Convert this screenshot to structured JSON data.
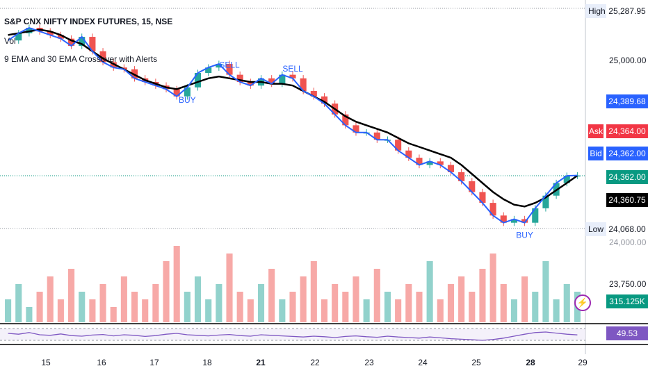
{
  "legend": {
    "title": "S&P CNX NIFTY INDEX FUTURES, 15, NSE",
    "vol_label": "Vol",
    "study_label": "9 EMA and 30 EMA Crossover with Alerts"
  },
  "price_axis": {
    "high_label": "High",
    "high_value": "25,287.95",
    "low_label": "Low",
    "low_value": "24,068.00",
    "ticks": [
      "25,000.00",
      "24,000.00",
      "23,750.00"
    ],
    "ask_label": "Ask",
    "bid_label": "Bid",
    "last_value": "24,389.68",
    "ask_value": "24,364.00",
    "bid_value": "24,362.00",
    "close_value": "24,362.00",
    "ema_value": "24,360.75",
    "volume_value": "315.125K",
    "rsi_value": "49.53"
  },
  "colors": {
    "up": "#26a69a",
    "down": "#ef5350",
    "ema9": "#2962ff",
    "ema30": "#000000",
    "rsi": "#7e57c2",
    "last_tag": "#2962ff",
    "ask_tag": "#f23645",
    "bid_tag": "#2962ff",
    "close_tag": "#089981",
    "ema_tag": "#000000",
    "rsi_tag": "#7e57c2"
  },
  "icons": {
    "alert": "lightning-icon"
  },
  "chart_data": {
    "type": "line",
    "title": "S&P CNX NIFTY INDEX FUTURES, 15, NSE",
    "x_ticks": [
      {
        "label": "15",
        "bold": false
      },
      {
        "label": "16",
        "bold": false
      },
      {
        "label": "17",
        "bold": false
      },
      {
        "label": "18",
        "bold": false
      },
      {
        "label": "21",
        "bold": true
      },
      {
        "label": "22",
        "bold": false
      },
      {
        "label": "23",
        "bold": false
      },
      {
        "label": "24",
        "bold": false
      },
      {
        "label": "25",
        "bold": false
      },
      {
        "label": "28",
        "bold": true
      },
      {
        "label": "29",
        "bold": false
      }
    ],
    "ylim": [
      24000,
      25300
    ],
    "high": 25287.95,
    "low": 24068.0,
    "ema9": [
      25110,
      25150,
      25180,
      25160,
      25140,
      25120,
      25080,
      25130,
      25050,
      24990,
      24960,
      24950,
      24900,
      24880,
      24860,
      24840,
      24800,
      24850,
      24930,
      24960,
      24980,
      24920,
      24880,
      24860,
      24900,
      24870,
      24920,
      24900,
      24830,
      24800,
      24760,
      24700,
      24640,
      24600,
      24600,
      24560,
      24560,
      24500,
      24460,
      24420,
      24440,
      24420,
      24380,
      24330,
      24270,
      24210,
      24140,
      24100,
      24120,
      24100,
      24180,
      24250,
      24320,
      24360,
      24362
    ],
    "ema30": [
      25140,
      25150,
      25160,
      25170,
      25160,
      25140,
      25110,
      25090,
      25050,
      25010,
      24980,
      24950,
      24920,
      24890,
      24870,
      24850,
      24840,
      24860,
      24880,
      24900,
      24910,
      24900,
      24890,
      24880,
      24880,
      24870,
      24870,
      24860,
      24830,
      24800,
      24770,
      24730,
      24690,
      24660,
      24640,
      24620,
      24600,
      24570,
      24540,
      24520,
      24500,
      24480,
      24460,
      24420,
      24370,
      24320,
      24270,
      24230,
      24200,
      24190,
      24210,
      24240,
      24280,
      24320,
      24360.75
    ],
    "signals": [
      {
        "label": "BUY",
        "x": 17
      },
      {
        "label": "SELL",
        "x": 21
      },
      {
        "label": "SELL",
        "x": 27
      },
      {
        "label": "BUY",
        "x": 49
      }
    ],
    "volume": [
      3,
      5,
      2,
      4,
      6,
      3,
      7,
      4,
      3,
      5,
      2,
      6,
      4,
      3,
      5,
      8,
      10,
      4,
      6,
      3,
      5,
      9,
      4,
      3,
      5,
      7,
      3,
      4,
      6,
      8,
      3,
      5,
      4,
      6,
      3,
      7,
      4,
      3,
      5,
      4,
      8,
      3,
      5,
      6,
      4,
      7,
      9,
      5,
      3,
      6,
      4,
      8,
      3,
      5,
      4
    ],
    "rsi": [
      55,
      52,
      58,
      50,
      48,
      53,
      47,
      45,
      49,
      51,
      46,
      50,
      48,
      44,
      47,
      52,
      55,
      50,
      48,
      46,
      49,
      51,
      47,
      45,
      50,
      48,
      46,
      44,
      42,
      45,
      43,
      40,
      44,
      46,
      43,
      41,
      45,
      42,
      40,
      38,
      42,
      39,
      36,
      34,
      32,
      30,
      33,
      38,
      45,
      52,
      58,
      60,
      56,
      52,
      49.53
    ]
  }
}
